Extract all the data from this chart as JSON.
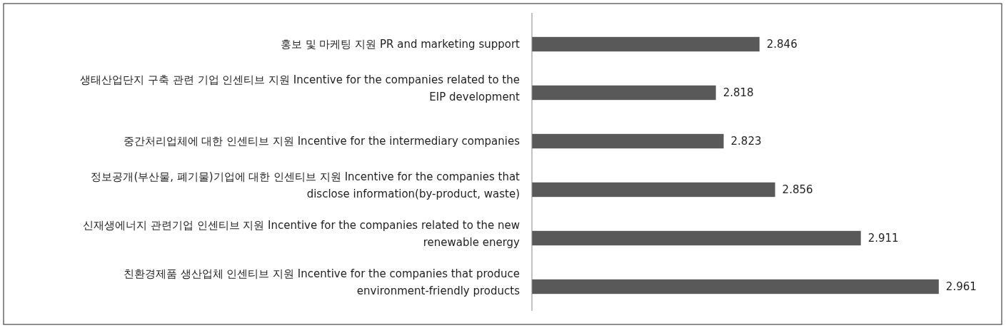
{
  "chart_data": {
    "type": "bar",
    "orientation": "horizontal",
    "categories": [
      "홍보 및 마케팅 지원 PR and marketing support",
      "생태산업단지 구축 관련 기업 인센티브 지원 Incentive for the companies related to the EIP development",
      "중간처리업체에 대한 인센티브 지원 Incentive for the intermediary companies",
      "정보공개(부산물, 폐기물)기업에 대한 인센티브 지원 Incentive for the companies that disclose information(by-product, waste)",
      "신재생에너지 관련기업 인센티브 지원 Incentive for the companies related to the new renewable energy",
      "친환경제품 생산업체 인센티브 지원 Incentive for the companies that produce environment-friendly products"
    ],
    "values": [
      2.846,
      2.818,
      2.823,
      2.856,
      2.911,
      2.961
    ],
    "color": "#595959",
    "xlim": [
      2.7,
      3.0
    ],
    "data_labels": true
  }
}
